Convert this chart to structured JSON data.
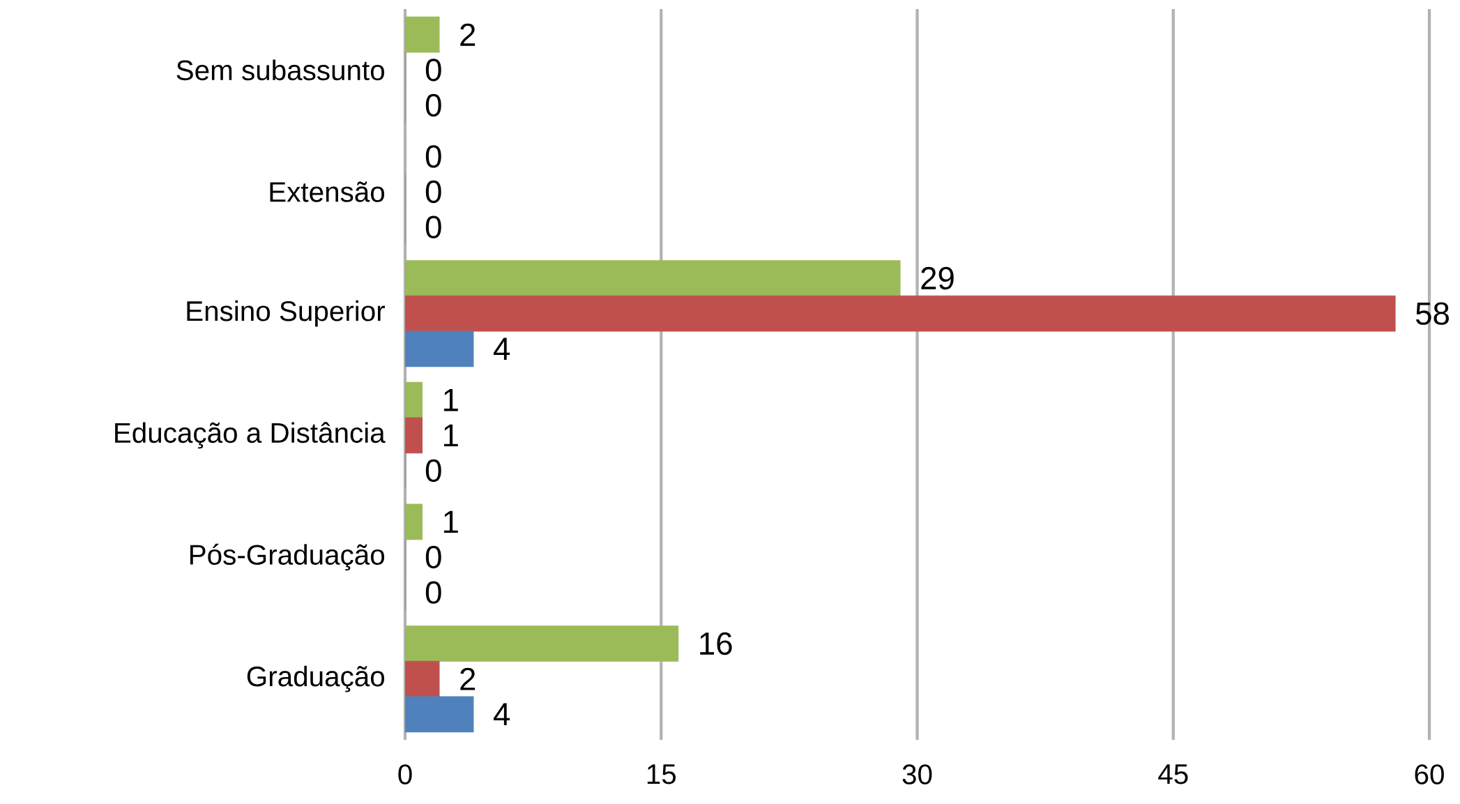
{
  "chart_data": {
    "type": "bar",
    "orientation": "horizontal",
    "categories": [
      "Sem subassunto",
      "Extensão",
      "Ensino Superior",
      "Educação a Distância",
      "Pós-Graduação",
      "Graduação"
    ],
    "series": [
      {
        "color": "#9bbb59",
        "values": [
          2,
          0,
          29,
          1,
          1,
          16
        ]
      },
      {
        "color": "#c0504d",
        "values": [
          0,
          0,
          58,
          1,
          0,
          2
        ]
      },
      {
        "color": "#4f81bd",
        "values": [
          0,
          0,
          4,
          0,
          0,
          4
        ]
      }
    ],
    "xlim": [
      0,
      60
    ],
    "xticks": [
      0,
      15,
      30,
      45,
      60
    ],
    "grid": "x",
    "data_labels": true
  }
}
